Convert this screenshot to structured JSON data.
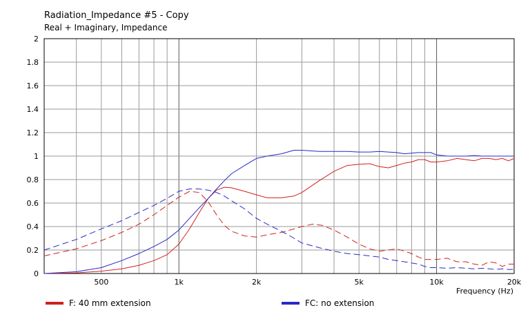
{
  "chart_data": {
    "type": "line",
    "title": "Radiation_Impedance #5 - Copy",
    "subtitle": "Real + Imaginary, Impedance",
    "xlabel": "Frequency  (Hz)",
    "ylabel": "",
    "xscale": "log",
    "xlim": [
      300,
      20000
    ],
    "ylim": [
      0,
      2
    ],
    "grid": true,
    "legend_position": "bottom",
    "x_ticks": [
      {
        "value": 500,
        "label": "500"
      },
      {
        "value": 1000,
        "label": "1k"
      },
      {
        "value": 2000,
        "label": "2k"
      },
      {
        "value": 5000,
        "label": "5k"
      },
      {
        "value": 10000,
        "label": "10k"
      },
      {
        "value": 20000,
        "label": "20k"
      }
    ],
    "y_ticks": [
      {
        "value": 0,
        "label": "0"
      },
      {
        "value": 0.2,
        "label": "0.2"
      },
      {
        "value": 0.4,
        "label": "0.4"
      },
      {
        "value": 0.6,
        "label": "0.6"
      },
      {
        "value": 0.8,
        "label": "0.8"
      },
      {
        "value": 1,
        "label": "1"
      },
      {
        "value": 1.2,
        "label": "1.2"
      },
      {
        "value": 1.4,
        "label": "1.4"
      },
      {
        "value": 1.6,
        "label": "1.6"
      },
      {
        "value": 1.8,
        "label": "1.8"
      },
      {
        "value": 2,
        "label": "2"
      }
    ],
    "series": [
      {
        "name": "F: 40 mm extension",
        "color": "#d02020",
        "lines": [
          {
            "component": "real",
            "style": "solid",
            "x": [
              300,
              400,
              500,
              600,
              700,
              800,
              900,
              1000,
              1100,
              1200,
              1300,
              1400,
              1500,
              1600,
              1800,
              2000,
              2200,
              2500,
              2800,
              3000,
              3500,
              4000,
              4500,
              5000,
              5500,
              6000,
              6500,
              7000,
              7500,
              8000,
              8500,
              9000,
              9500,
              10000,
              11000,
              12000,
              13000,
              14000,
              15000,
              16000,
              17000,
              18000,
              19000,
              20000
            ],
            "y": [
              0.0,
              0.005,
              0.02,
              0.04,
              0.07,
              0.11,
              0.16,
              0.25,
              0.38,
              0.52,
              0.64,
              0.71,
              0.735,
              0.73,
              0.7,
              0.67,
              0.645,
              0.645,
              0.66,
              0.69,
              0.79,
              0.87,
              0.92,
              0.93,
              0.935,
              0.91,
              0.9,
              0.92,
              0.94,
              0.95,
              0.97,
              0.97,
              0.95,
              0.95,
              0.96,
              0.98,
              0.97,
              0.96,
              0.98,
              0.98,
              0.97,
              0.98,
              0.96,
              0.98
            ]
          },
          {
            "component": "imaginary",
            "style": "dashed",
            "x": [
              300,
              400,
              500,
              600,
              700,
              800,
              900,
              1000,
              1100,
              1200,
              1300,
              1400,
              1500,
              1600,
              1800,
              2000,
              2200,
              2500,
              2800,
              3000,
              3300,
              3600,
              4000,
              4500,
              5000,
              5500,
              6000,
              6500,
              7000,
              7500,
              8000,
              8500,
              9000,
              9500,
              10000,
              11000,
              12000,
              13000,
              14000,
              15000,
              16000,
              17000,
              18000,
              19000,
              20000
            ],
            "y": [
              0.15,
              0.21,
              0.28,
              0.35,
              0.42,
              0.5,
              0.58,
              0.65,
              0.7,
              0.69,
              0.61,
              0.5,
              0.41,
              0.36,
              0.32,
              0.31,
              0.33,
              0.35,
              0.38,
              0.4,
              0.42,
              0.41,
              0.37,
              0.31,
              0.25,
              0.21,
              0.19,
              0.2,
              0.21,
              0.19,
              0.17,
              0.14,
              0.12,
              0.12,
              0.12,
              0.13,
              0.1,
              0.1,
              0.08,
              0.07,
              0.1,
              0.09,
              0.06,
              0.08,
              0.08
            ]
          }
        ]
      },
      {
        "name": "FC: no extension",
        "color": "#2828c8",
        "lines": [
          {
            "component": "real",
            "style": "solid",
            "x": [
              300,
              400,
              500,
              600,
              700,
              800,
              900,
              1000,
              1100,
              1200,
              1300,
              1400,
              1500,
              1600,
              1800,
              2000,
              2200,
              2500,
              2800,
              3000,
              3500,
              4000,
              4500,
              5000,
              5500,
              6000,
              6500,
              7000,
              7500,
              8000,
              8500,
              9000,
              9500,
              10000,
              11000,
              12000,
              13000,
              14000,
              15000,
              16000,
              17000,
              18000,
              19000,
              20000
            ],
            "y": [
              0.0,
              0.015,
              0.05,
              0.11,
              0.17,
              0.23,
              0.29,
              0.37,
              0.47,
              0.56,
              0.64,
              0.72,
              0.79,
              0.85,
              0.92,
              0.98,
              1.0,
              1.02,
              1.05,
              1.05,
              1.04,
              1.04,
              1.04,
              1.035,
              1.035,
              1.04,
              1.035,
              1.03,
              1.02,
              1.025,
              1.03,
              1.03,
              1.03,
              1.01,
              1.0,
              1.0,
              1.0,
              1.005,
              1.0,
              1.0,
              1.0,
              1.0,
              1.0,
              1.0
            ]
          },
          {
            "component": "imaginary",
            "style": "dashed",
            "x": [
              300,
              400,
              500,
              600,
              700,
              800,
              900,
              1000,
              1100,
              1200,
              1300,
              1400,
              1500,
              1600,
              1800,
              2000,
              2200,
              2500,
              2800,
              3000,
              3500,
              4000,
              4500,
              5000,
              5500,
              6000,
              6500,
              7000,
              7500,
              8000,
              8500,
              9000,
              9500,
              10000,
              11000,
              12000,
              13000,
              14000,
              15000,
              16000,
              17000,
              18000,
              19000,
              20000
            ],
            "y": [
              0.2,
              0.29,
              0.38,
              0.45,
              0.52,
              0.58,
              0.64,
              0.7,
              0.72,
              0.72,
              0.71,
              0.69,
              0.66,
              0.62,
              0.55,
              0.47,
              0.42,
              0.36,
              0.3,
              0.26,
              0.22,
              0.19,
              0.17,
              0.16,
              0.15,
              0.14,
              0.12,
              0.11,
              0.1,
              0.09,
              0.08,
              0.06,
              0.05,
              0.05,
              0.045,
              0.05,
              0.045,
              0.04,
              0.045,
              0.04,
              0.035,
              0.04,
              0.035,
              0.035
            ]
          }
        ]
      }
    ]
  }
}
